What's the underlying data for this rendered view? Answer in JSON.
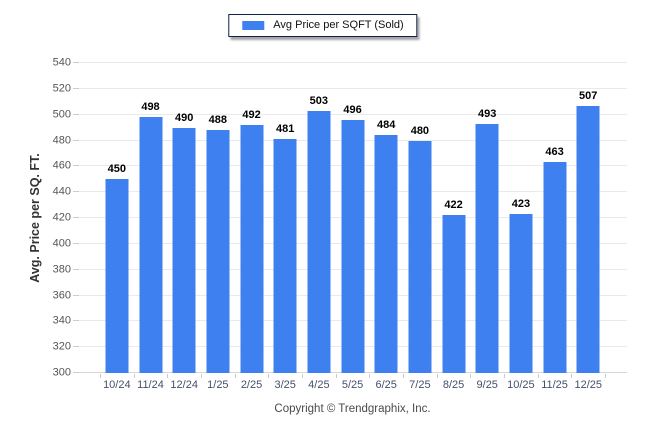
{
  "legend": {
    "label": "Avg Price per SQFT (Sold)",
    "swatch_color": "#3e80f0"
  },
  "footer": {
    "text": "Copyright © Trendgraphix, Inc."
  },
  "chart_data": {
    "type": "bar",
    "title": "",
    "series_name": "Avg Price per SQFT (Sold)",
    "categories": [
      "10/24",
      "11/24",
      "12/24",
      "1/25",
      "2/25",
      "3/25",
      "4/25",
      "5/25",
      "6/25",
      "7/25",
      "8/25",
      "9/25",
      "10/25",
      "11/25",
      "12/25"
    ],
    "values": [
      450,
      498,
      490,
      488,
      492,
      481,
      503,
      496,
      484,
      480,
      422,
      493,
      423,
      463,
      507
    ],
    "xlabel": "",
    "ylabel": "Avg. Price per SQ. FT.",
    "ylim": [
      300,
      540
    ],
    "ytick_step": 20,
    "grid": true,
    "value_labels": true,
    "bar_color": "#3e80f0",
    "legend_position": "top-center",
    "colors": {
      "bar": "#3e80f0",
      "legend_border": "#13204a",
      "gridline": "#eaeaea",
      "value_label": "#000000",
      "axis_tick_label": "#555555",
      "x_tick_label": "#44506a",
      "footer_text": "#4a4a4a"
    }
  }
}
